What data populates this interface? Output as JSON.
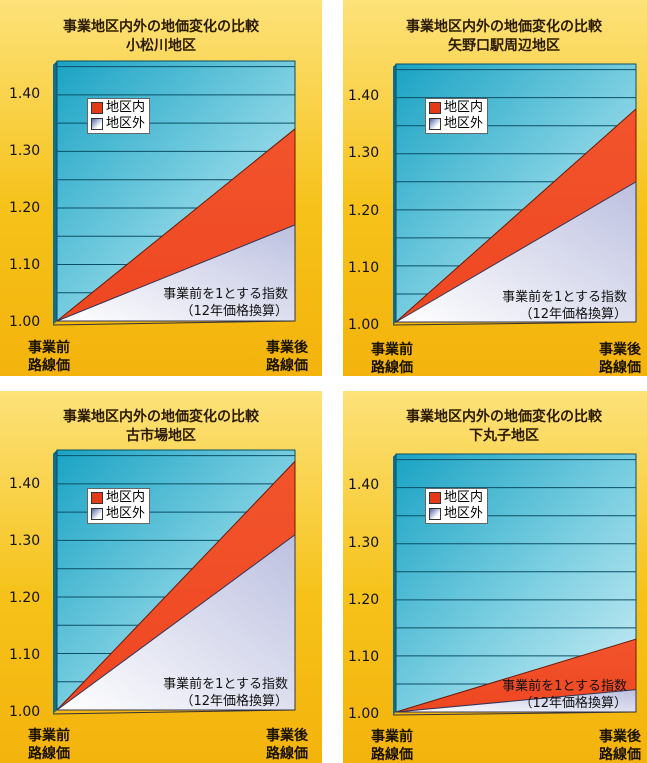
{
  "colors": {
    "inside": "#ee4722",
    "outside": "#e9eaf5",
    "plot_top": "#1aa3c4",
    "plot_bottom": "#cfeef6",
    "panel_bg": "#f6c21a"
  },
  "charts": [
    {
      "title_line1": "事業地区内外の地価変化の比較",
      "title_line2": "小松川地区",
      "legend": [
        "地区内",
        "地区外"
      ],
      "xlabels": [
        [
          "事業前",
          "路線価"
        ],
        [
          "事業後",
          "路線価"
        ]
      ],
      "annotation": [
        "事業前を1とする指数",
        "（12年価格換算）"
      ],
      "yticks": [
        "1.40",
        "1.30",
        "1.20",
        "1.10",
        "1.00"
      ]
    },
    {
      "title_line1": "事業地区内外の地価変化の比較",
      "title_line2": "矢野口駅周辺地区",
      "legend": [
        "地区内",
        "地区外"
      ],
      "xlabels": [
        [
          "事業前",
          "路線価"
        ],
        [
          "事業後",
          "路線価"
        ]
      ],
      "annotation": [
        "事業前を1とする指数",
        "（12年価格換算）"
      ],
      "yticks": [
        "1.40",
        "1.30",
        "1.20",
        "1.10",
        "1.00"
      ]
    },
    {
      "title_line1": "事業地区内外の地価変化の比較",
      "title_line2": "古市場地区",
      "legend": [
        "地区内",
        "地区外"
      ],
      "xlabels": [
        [
          "事業前",
          "路線価"
        ],
        [
          "事業後",
          "路線価"
        ]
      ],
      "annotation": [
        "事業前を1とする指数",
        "（12年価格換算）"
      ],
      "yticks": [
        "1.40",
        "1.30",
        "1.20",
        "1.10",
        "1.00"
      ]
    },
    {
      "title_line1": "事業地区内外の地価変化の比較",
      "title_line2": "下丸子地区",
      "legend": [
        "地区内",
        "地区外"
      ],
      "xlabels": [
        [
          "事業前",
          "路線価"
        ],
        [
          "事業後",
          "路線価"
        ]
      ],
      "annotation": [
        "事業前を1とする指数",
        "（12年価格換算）"
      ],
      "yticks": [
        "1.40",
        "1.30",
        "1.20",
        "1.10",
        "1.00"
      ]
    }
  ],
  "chart_data": [
    {
      "type": "area",
      "categories": [
        "事業前 路線価",
        "事業後 路線価"
      ],
      "series": [
        {
          "name": "地区内",
          "values": [
            1.0,
            1.34
          ]
        },
        {
          "name": "地区外",
          "values": [
            1.0,
            1.17
          ]
        }
      ],
      "ylim": [
        1.0,
        1.46
      ],
      "grid": true,
      "legend_placement": "top-left"
    },
    {
      "type": "area",
      "categories": [
        "事業前 路線価",
        "事業後 路線価"
      ],
      "series": [
        {
          "name": "地区内",
          "values": [
            1.0,
            1.38
          ]
        },
        {
          "name": "地区外",
          "values": [
            1.0,
            1.25
          ]
        }
      ],
      "ylim": [
        1.0,
        1.46
      ],
      "grid": true,
      "legend_placement": "top-left"
    },
    {
      "type": "area",
      "categories": [
        "事業前 路線価",
        "事業後 路線価"
      ],
      "series": [
        {
          "name": "地区内",
          "values": [
            1.0,
            1.44
          ]
        },
        {
          "name": "地区外",
          "values": [
            1.0,
            1.31
          ]
        }
      ],
      "ylim": [
        1.0,
        1.46
      ],
      "grid": true,
      "legend_placement": "top-left"
    },
    {
      "type": "area",
      "categories": [
        "事業前 路線価",
        "事業後 路線価"
      ],
      "series": [
        {
          "name": "地区内",
          "values": [
            1.0,
            1.13
          ]
        },
        {
          "name": "地区外",
          "values": [
            1.0,
            1.04
          ]
        }
      ],
      "ylim": [
        1.0,
        1.46
      ],
      "grid": true,
      "legend_placement": "top-left"
    }
  ]
}
